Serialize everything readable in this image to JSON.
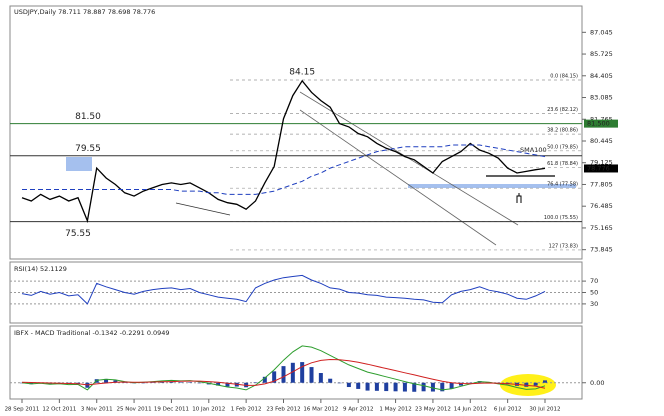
{
  "chart_data": [
    {
      "type": "line",
      "title": "USDJPY,Daily 78.711 78.887 78.698 78.776",
      "categories": [
        "28 Sep 2011",
        null,
        null,
        null,
        "12 Oct 2011",
        null,
        null,
        null,
        "3 Nov 2011",
        null,
        null,
        null,
        "25 Nov 2011",
        null,
        null,
        null,
        "19 Dec 2011",
        null,
        null,
        null,
        "10 Jan 2012",
        null,
        null,
        null,
        "1 Feb 2012",
        null,
        null,
        null,
        "23 Feb 2012",
        null,
        null,
        null,
        "16 Mar 2012",
        null,
        null,
        null,
        "9 Apr 2012",
        null,
        null,
        null,
        "1 May 2012",
        null,
        null,
        null,
        "23 May 2012",
        null,
        null,
        null,
        "14 Jun 2012",
        null,
        null,
        null,
        "6 Jul 2012",
        null,
        null,
        null,
        "30 Jul 2012"
      ],
      "series": [
        {
          "name": "USDJPY",
          "color": "#000000",
          "values": [
            77.0,
            76.8,
            77.2,
            76.9,
            77.1,
            76.8,
            77.0,
            75.6,
            78.8,
            78.2,
            77.8,
            77.3,
            77.1,
            77.4,
            77.6,
            77.8,
            77.9,
            77.8,
            77.9,
            77.6,
            77.3,
            76.9,
            76.7,
            76.6,
            76.3,
            76.8,
            77.9,
            78.9,
            81.8,
            83.2,
            84.1,
            83.4,
            82.9,
            82.5,
            81.5,
            81.3,
            80.9,
            80.7,
            80.3,
            80.0,
            79.8,
            79.5,
            79.3,
            78.9,
            78.5,
            79.2,
            79.5,
            79.8,
            80.3,
            79.9,
            79.7,
            79.4,
            78.8,
            78.5,
            78.6,
            78.7,
            78.78
          ]
        },
        {
          "name": "SMA100",
          "color": "#1f3fbf",
          "dash": true,
          "values": [
            77.5,
            77.5,
            77.5,
            77.5,
            77.5,
            77.5,
            77.5,
            77.5,
            77.5,
            77.5,
            77.5,
            77.5,
            77.5,
            77.5,
            77.5,
            77.5,
            77.5,
            77.4,
            77.4,
            77.4,
            77.3,
            77.3,
            77.2,
            77.2,
            77.2,
            77.2,
            77.3,
            77.4,
            77.6,
            77.8,
            78.0,
            78.3,
            78.5,
            78.8,
            79.0,
            79.2,
            79.4,
            79.6,
            79.8,
            79.9,
            80.0,
            80.1,
            80.1,
            80.1,
            80.1,
            80.1,
            80.2,
            80.2,
            80.2,
            80.2,
            80.1,
            80.0,
            79.9,
            79.8,
            79.7,
            79.6,
            79.5
          ]
        }
      ],
      "ylim": [
        73.4,
        88.4
      ],
      "yticks": [
        87.045,
        85.725,
        84.405,
        83.085,
        81.765,
        80.445,
        79.125,
        77.805,
        76.485,
        75.165,
        73.845
      ],
      "levels": [
        {
          "value": 81.5,
          "label": "81.50",
          "color": "#2e7d32"
        },
        {
          "value": 79.55,
          "label": "79.55",
          "color": "#333333"
        },
        {
          "value": 75.55,
          "label": "75.55",
          "color": "#333333"
        }
      ],
      "fibonacci": [
        {
          "value": 84.15,
          "label": "0.0 (84.15)"
        },
        {
          "value": 82.12,
          "label": "23.6 (82.12)"
        },
        {
          "value": 80.86,
          "label": "38.2 (80.86)"
        },
        {
          "value": 79.85,
          "label": "50.0 (79.85)"
        },
        {
          "value": 78.84,
          "label": "61.8 (78.84)"
        },
        {
          "value": 77.58,
          "label": "76.4 (77.58)"
        },
        {
          "value": 75.55,
          "label": "100.0 (75.55)"
        },
        {
          "value": 73.83,
          "label": "127 (73.83)"
        }
      ],
      "price_tags": [
        {
          "value": 81.5,
          "label": "81.500",
          "color": "#2e7d32"
        },
        {
          "value": 78.776,
          "label": "78.776",
          "color": "#000000"
        }
      ],
      "peak_label": 84.15,
      "sma_label": "SMA100"
    },
    {
      "type": "line",
      "title": "RSI(14) 52.1129",
      "series": [
        {
          "name": "RSI(14)",
          "color": "#1f3fbf",
          "values": [
            48,
            45,
            52,
            47,
            50,
            44,
            46,
            30,
            66,
            60,
            55,
            50,
            47,
            52,
            55,
            57,
            58,
            55,
            57,
            50,
            46,
            42,
            40,
            38,
            34,
            58,
            66,
            72,
            76,
            78,
            80,
            72,
            66,
            58,
            56,
            50,
            49,
            46,
            45,
            42,
            41,
            40,
            38,
            37,
            33,
            32,
            46,
            52,
            55,
            60,
            54,
            51,
            47,
            40,
            38,
            44,
            52
          ]
        }
      ],
      "ylim": [
        0,
        100
      ],
      "yticks": [
        70,
        50,
        30
      ]
    },
    {
      "type": "line",
      "title": "IBFX - MACD Traditional -0.1342 -0.2291 0.0949",
      "series": [
        {
          "name": "Histogram",
          "color": "#1f3f9f",
          "style": "histogram",
          "values": [
            -0.02,
            -0.06,
            -0.02,
            -0.05,
            -0.02,
            -0.05,
            -0.03,
            -0.21,
            0.15,
            0.16,
            0.1,
            0.02,
            -0.02,
            0,
            0.02,
            0.04,
            0.05,
            0.02,
            0.02,
            -0.02,
            -0.07,
            -0.12,
            -0.16,
            -0.16,
            -0.19,
            0.01,
            0.25,
            0.48,
            0.7,
            0.84,
            0.87,
            0.66,
            0.41,
            0.17,
            -0.02,
            -0.18,
            -0.26,
            -0.33,
            -0.34,
            -0.35,
            -0.36,
            -0.37,
            -0.38,
            -0.36,
            -0.37,
            -0.36,
            -0.25,
            -0.12,
            -0.01,
            0.07,
            0.03,
            -0.03,
            -0.06,
            -0.13,
            -0.17,
            -0.12,
            0.1
          ]
        },
        {
          "name": "MACD",
          "color": "#2e9e2e",
          "values": [
            0.0,
            -0.05,
            -0.02,
            -0.06,
            -0.04,
            -0.08,
            -0.07,
            -0.3,
            0.1,
            0.15,
            0.12,
            0.05,
            0.0,
            0.02,
            0.05,
            0.08,
            0.1,
            0.08,
            0.09,
            0.05,
            -0.02,
            -0.1,
            -0.18,
            -0.22,
            -0.3,
            -0.1,
            0.2,
            0.55,
            0.95,
            1.3,
            1.55,
            1.5,
            1.35,
            1.15,
            0.95,
            0.75,
            0.6,
            0.45,
            0.35,
            0.25,
            0.15,
            0.05,
            -0.05,
            -0.12,
            -0.22,
            -0.3,
            -0.25,
            -0.15,
            -0.05,
            0.05,
            0.02,
            -0.05,
            -0.1,
            -0.2,
            -0.28,
            -0.26,
            -0.13
          ]
        },
        {
          "name": "Signal",
          "color": "#d02020",
          "values": [
            0.02,
            0.01,
            0.0,
            -0.01,
            -0.02,
            -0.03,
            -0.04,
            -0.09,
            -0.05,
            -0.01,
            0.02,
            0.03,
            0.02,
            0.02,
            0.03,
            0.04,
            0.05,
            0.06,
            0.07,
            0.07,
            0.05,
            0.02,
            -0.02,
            -0.06,
            -0.11,
            -0.11,
            -0.05,
            0.07,
            0.25,
            0.46,
            0.68,
            0.84,
            0.94,
            0.98,
            0.97,
            0.93,
            0.86,
            0.78,
            0.69,
            0.6,
            0.51,
            0.42,
            0.33,
            0.24,
            0.15,
            0.06,
            0.0,
            -0.03,
            -0.04,
            -0.02,
            -0.01,
            -0.02,
            -0.04,
            -0.07,
            -0.11,
            -0.14,
            -0.23
          ]
        }
      ],
      "ylim": [
        -0.6,
        1.8
      ],
      "yticks": [
        {
          "value": 0,
          "label": "0.00"
        }
      ]
    }
  ]
}
